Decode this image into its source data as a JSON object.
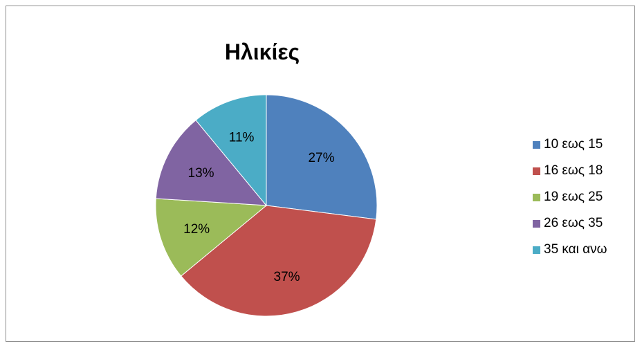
{
  "chart_data": {
    "type": "pie",
    "title": "Ηλικίες",
    "categories": [
      "10 εως 15",
      "16 εως 18",
      "19 εως 25",
      "26 εως 35",
      "35 και ανω"
    ],
    "values": [
      27,
      37,
      12,
      13,
      11
    ],
    "value_labels": [
      "27%",
      "37%",
      "12%",
      "13%",
      "11%"
    ],
    "colors": [
      "#4f81bd",
      "#c0504d",
      "#9bbb59",
      "#8064a2",
      "#4bacc6"
    ],
    "legend_position": "right"
  }
}
